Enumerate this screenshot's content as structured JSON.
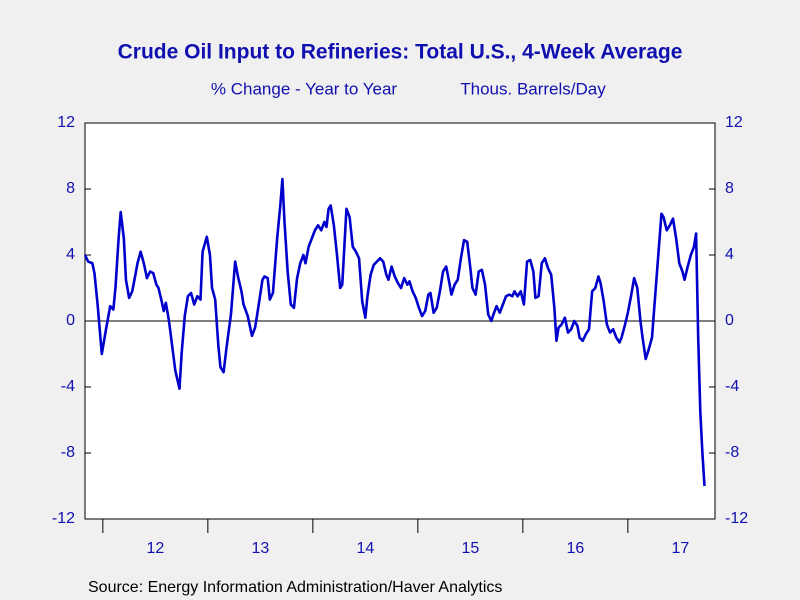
{
  "chart_data": {
    "type": "line",
    "title": "Crude Oil Input to Refineries: Total U.S., 4-Week Average",
    "subtitles": [
      "% Change - Year to Year",
      "Thous. Barrels/Day"
    ],
    "source": "Source:  Energy Information Administration/Haver Analytics",
    "color": "#0000cc",
    "xlim": [
      2011.83,
      2017.83
    ],
    "xticks": [
      {
        "value": 2012,
        "label": "12"
      },
      {
        "value": 2013,
        "label": "13"
      },
      {
        "value": 2014,
        "label": "14"
      },
      {
        "value": 2015,
        "label": "15"
      },
      {
        "value": 2016,
        "label": "16"
      },
      {
        "value": 2017,
        "label": "17"
      }
    ],
    "ylim": [
      -12,
      12
    ],
    "yticks": [
      -12,
      -8,
      -4,
      0,
      4,
      8,
      12
    ],
    "y2lim": [
      -12,
      12
    ],
    "y2ticks": [
      -12,
      -8,
      -4,
      0,
      4,
      8,
      12
    ],
    "zero_line": true,
    "x": [
      2011.83,
      2011.86,
      2011.9,
      2011.92,
      2011.95,
      2011.99,
      2012.03,
      2012.07,
      2012.1,
      2012.12,
      2012.15,
      2012.17,
      2012.2,
      2012.22,
      2012.25,
      2012.28,
      2012.31,
      2012.33,
      2012.36,
      2012.39,
      2012.42,
      2012.45,
      2012.48,
      2012.51,
      2012.53,
      2012.56,
      2012.58,
      2012.6,
      2012.63,
      2012.66,
      2012.69,
      2012.73,
      2012.75,
      2012.78,
      2012.81,
      2012.84,
      2012.87,
      2012.9,
      2012.93,
      2012.95,
      2012.99,
      2013.02,
      2013.04,
      2013.07,
      2013.1,
      2013.12,
      2013.15,
      2013.18,
      2013.22,
      2013.26,
      2013.29,
      2013.32,
      2013.34,
      2013.38,
      2013.42,
      2013.45,
      2013.48,
      2013.52,
      2013.54,
      2013.57,
      2013.59,
      2013.62,
      2013.66,
      2013.69,
      2013.71,
      2013.73,
      2013.76,
      2013.79,
      2013.82,
      2013.85,
      2013.88,
      2013.91,
      2013.93,
      2013.96,
      2013.99,
      2014.02,
      2014.05,
      2014.08,
      2014.11,
      2014.13,
      2014.15,
      2014.17,
      2014.2,
      2014.23,
      2014.26,
      2014.28,
      2014.3,
      2014.32,
      2014.35,
      2014.38,
      2014.41,
      2014.44,
      2014.47,
      2014.5,
      2014.52,
      2014.55,
      2014.58,
      2014.61,
      2014.64,
      2014.67,
      2014.7,
      2014.72,
      2014.75,
      2014.78,
      2014.81,
      2014.84,
      2014.87,
      2014.9,
      2014.92,
      2014.95,
      2014.98,
      2015.01,
      2015.04,
      2015.07,
      2015.1,
      2015.12,
      2015.15,
      2015.18,
      2015.21,
      2015.24,
      2015.27,
      2015.3,
      2015.32,
      2015.35,
      2015.38,
      2015.41,
      2015.44,
      2015.47,
      2015.5,
      2015.52,
      2015.55,
      2015.58,
      2015.61,
      2015.64,
      2015.67,
      2015.7,
      2015.72,
      2015.75,
      2015.78,
      2015.81,
      2015.84,
      2015.87,
      2015.9,
      2015.92,
      2015.95,
      2015.98,
      2016.01,
      2016.04,
      2016.07,
      2016.1,
      2016.12,
      2016.15,
      2016.18,
      2016.21,
      2016.24,
      2016.27,
      2016.3,
      2016.32,
      2016.34,
      2016.37,
      2016.4,
      2016.43,
      2016.46,
      2016.49,
      2016.52,
      2016.54,
      2016.57,
      2016.6,
      2016.63,
      2016.66,
      2016.69,
      2016.72,
      2016.74,
      2016.77,
      2016.8,
      2016.83,
      2016.86,
      2016.89,
      2016.92,
      2016.94,
      2016.97,
      2017.0,
      2017.03,
      2017.06,
      2017.09,
      2017.12,
      2017.14,
      2017.17,
      2017.2,
      2017.23,
      2017.26,
      2017.29,
      2017.32,
      2017.34,
      2017.37,
      2017.4,
      2017.43,
      2017.46,
      2017.49,
      2017.52,
      2017.54,
      2017.57,
      2017.6,
      2017.63,
      2017.65,
      2017.67,
      2017.69,
      2017.71,
      2017.73
    ],
    "values": [
      4.0,
      3.6,
      3.5,
      2.9,
      1.0,
      -2.0,
      -0.5,
      0.9,
      0.7,
      2.0,
      5.0,
      6.6,
      5.0,
      2.5,
      1.4,
      1.8,
      2.8,
      3.5,
      4.2,
      3.5,
      2.6,
      3.0,
      2.9,
      2.2,
      2.0,
      1.2,
      0.6,
      1.1,
      0.0,
      -1.5,
      -3.0,
      -4.1,
      -2.0,
      0.3,
      1.5,
      1.7,
      1.0,
      1.5,
      1.3,
      4.2,
      5.1,
      4.0,
      2.0,
      1.3,
      -1.5,
      -2.8,
      -3.1,
      -1.5,
      0.4,
      3.6,
      2.6,
      1.8,
      1.0,
      0.3,
      -0.9,
      -0.4,
      0.8,
      2.5,
      2.7,
      2.6,
      1.3,
      1.7,
      5.0,
      7.0,
      8.6,
      6.0,
      3.0,
      1.0,
      0.8,
      2.6,
      3.5,
      4.0,
      3.5,
      4.5,
      5.0,
      5.5,
      5.8,
      5.5,
      6.0,
      5.7,
      6.8,
      7.0,
      5.8,
      4.0,
      2.0,
      2.2,
      4.5,
      6.8,
      6.3,
      4.5,
      4.2,
      3.8,
      1.2,
      0.2,
      1.5,
      2.8,
      3.4,
      3.6,
      3.8,
      3.6,
      2.8,
      2.5,
      3.3,
      2.7,
      2.3,
      2.0,
      2.6,
      2.2,
      2.4,
      1.8,
      1.4,
      0.8,
      0.3,
      0.6,
      1.6,
      1.7,
      0.5,
      0.8,
      1.8,
      3.0,
      3.3,
      2.3,
      1.6,
      2.2,
      2.5,
      3.8,
      4.9,
      4.8,
      3.2,
      2.0,
      1.6,
      3.0,
      3.1,
      2.2,
      0.4,
      0.0,
      0.4,
      0.9,
      0.5,
      1.0,
      1.5,
      1.6,
      1.5,
      1.8,
      1.5,
      1.8,
      1.0,
      3.6,
      3.7,
      3.0,
      1.4,
      1.5,
      3.5,
      3.8,
      3.2,
      2.8,
      0.8,
      -1.2,
      -0.4,
      -0.2,
      0.2,
      -0.7,
      -0.5,
      0.0,
      -0.3,
      -1.0,
      -1.2,
      -0.8,
      -0.5,
      1.8,
      2.0,
      2.7,
      2.3,
      1.2,
      -0.2,
      -0.7,
      -0.5,
      -1.0,
      -1.3,
      -1.0,
      -0.3,
      0.5,
      1.5,
      2.6,
      2.0,
      0.0,
      -1.0,
      -2.3,
      -1.7,
      -1.0,
      1.5,
      4.0,
      6.5,
      6.3,
      5.5,
      5.8,
      6.2,
      5.0,
      3.5,
      3.0,
      2.5,
      3.3,
      4.0,
      4.5,
      5.3,
      -1.0,
      -5.5,
      -8.0,
      -10.0
    ]
  }
}
